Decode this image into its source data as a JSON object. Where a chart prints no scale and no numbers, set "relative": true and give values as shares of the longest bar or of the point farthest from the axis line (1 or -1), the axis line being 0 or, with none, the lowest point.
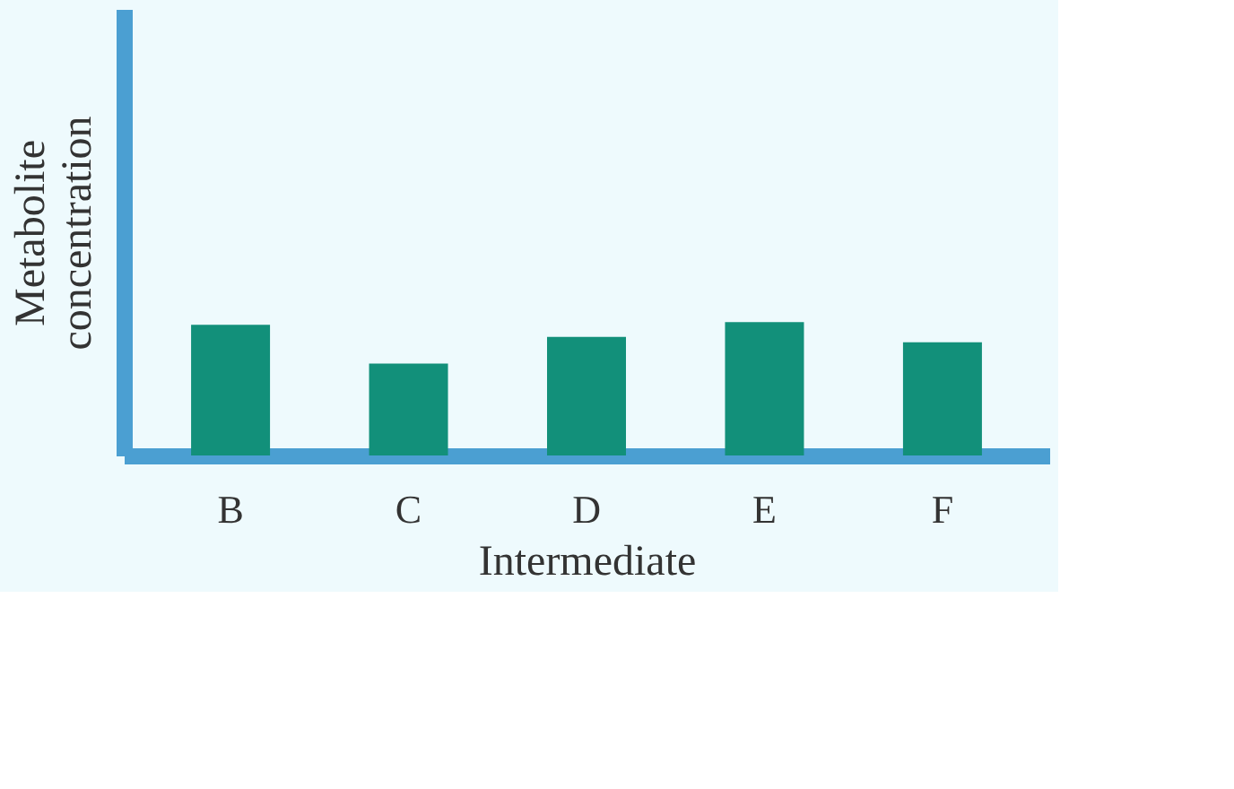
{
  "chart_data": {
    "type": "bar",
    "relative": true,
    "xlabel": "Intermediate",
    "ylabel": "Metabolite\nconcentration",
    "categories": [
      "B",
      "C",
      "D",
      "E",
      "F"
    ],
    "values": [
      0.98,
      0.69,
      0.89,
      1,
      0.85
    ],
    "color": "#12907a",
    "grid": false
  }
}
